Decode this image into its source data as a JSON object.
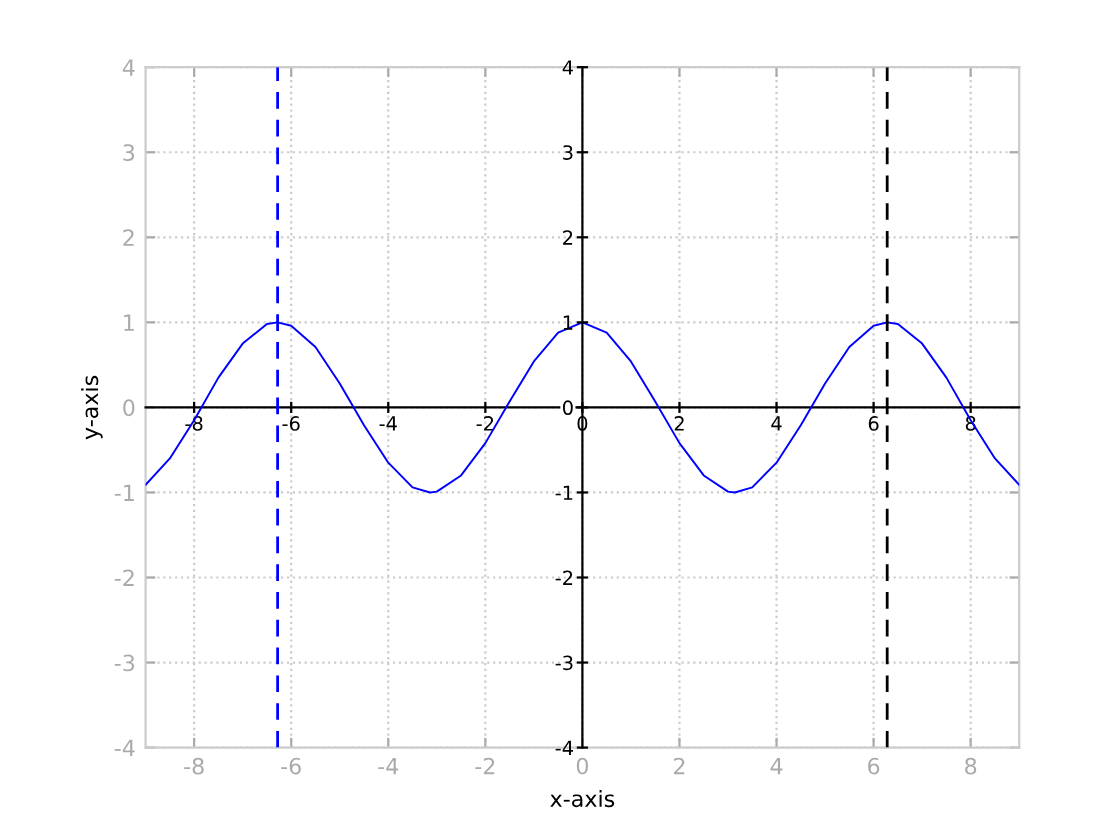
{
  "chart_data": {
    "type": "line",
    "xlabel": "x-axis",
    "ylabel": "y-axis",
    "x": [
      -9,
      -8.5,
      -8,
      -7.5,
      -7,
      -6.5,
      -6.28,
      -6,
      -5.5,
      -5,
      -4.5,
      -4,
      -3.5,
      -3.14,
      -3,
      -2.5,
      -2,
      -1.5,
      -1,
      -0.5,
      0,
      0.5,
      1,
      1.5,
      2,
      2.5,
      3,
      3.14,
      3.5,
      4,
      4.5,
      5,
      5.5,
      6,
      6.28,
      6.5,
      7,
      7.5,
      8,
      8.5,
      9
    ],
    "series": [
      {
        "color": "#0000ff",
        "values": [
          -0.91,
          -0.6,
          -0.15,
          0.35,
          0.75,
          0.98,
          1,
          0.96,
          0.71,
          0.28,
          -0.21,
          -0.65,
          -0.94,
          -1,
          -0.99,
          -0.8,
          -0.42,
          0.07,
          0.54,
          0.88,
          1,
          0.88,
          0.54,
          0.07,
          -0.42,
          -0.8,
          -0.99,
          -1,
          -0.94,
          -0.65,
          -0.21,
          0.28,
          0.71,
          0.96,
          1,
          0.98,
          0.75,
          0.35,
          -0.15,
          -0.6,
          -0.91
        ]
      }
    ],
    "xlim": [
      -9,
      9
    ],
    "ylim": [
      -4,
      4
    ],
    "xticks": [
      -8,
      -6,
      -4,
      -2,
      0,
      2,
      4,
      6,
      8
    ],
    "yticks": [
      -4,
      -3,
      -2,
      -1,
      0,
      1,
      2,
      3,
      4
    ],
    "x2lim": [
      -9,
      9
    ],
    "y2lim": [
      -4,
      4
    ],
    "x2ticks": [
      -8,
      -6,
      -4,
      -2,
      0,
      2,
      4,
      6,
      8
    ],
    "y2ticks": [
      -4,
      -3,
      -2,
      -1,
      0,
      1,
      2,
      3,
      4
    ],
    "ref_lines": [
      {
        "axis": "x",
        "value": -6.28,
        "color": "#0000ff",
        "line_style": "dashed"
      },
      {
        "axis": "x",
        "value": 6.28,
        "color": "#000000",
        "line_style": "dashed"
      }
    ],
    "grid": true,
    "line_style": "solid",
    "marker": "none"
  }
}
